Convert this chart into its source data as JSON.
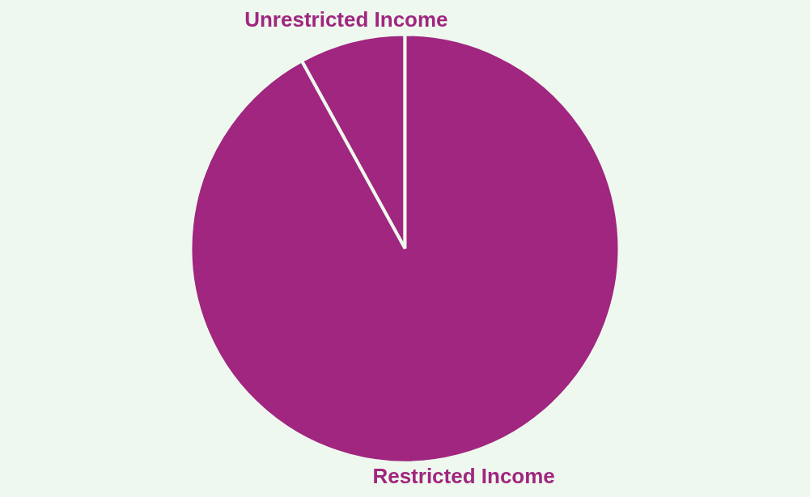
{
  "chart_data": {
    "type": "pie",
    "categories": [
      "Unrestricted Income",
      "Restricted Income"
    ],
    "values": [
      8,
      92
    ],
    "colors": [
      "#a0267f",
      "#a0267f"
    ],
    "legend": false
  }
}
